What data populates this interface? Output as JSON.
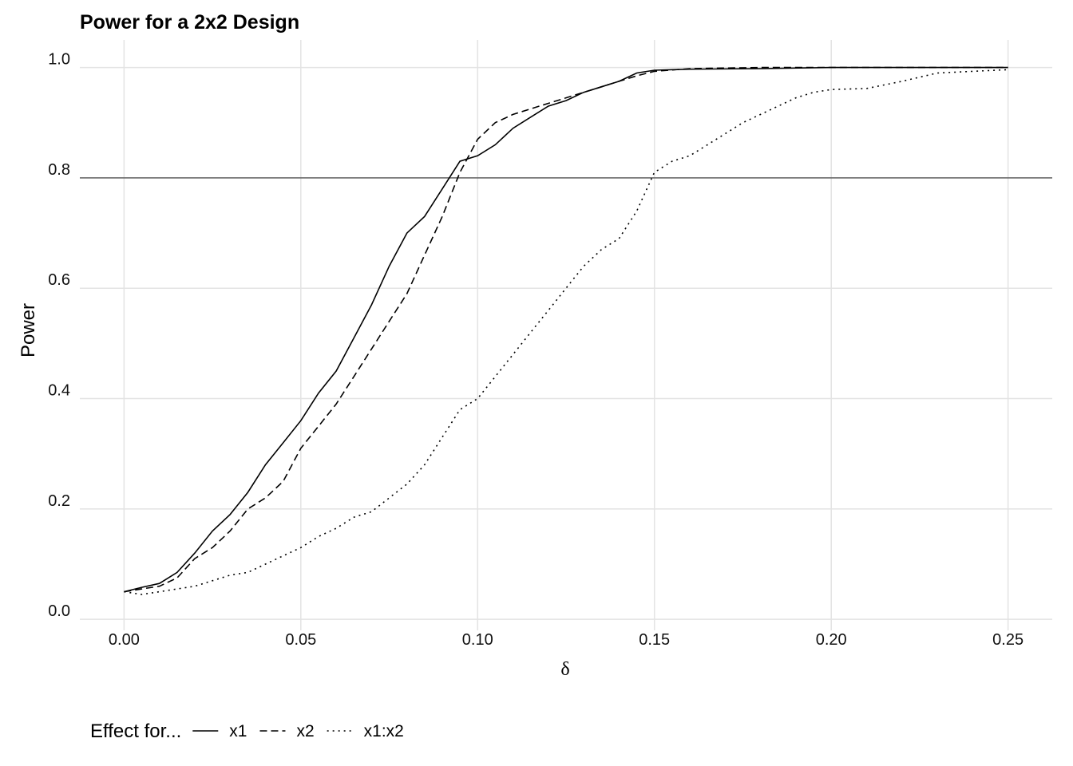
{
  "chart_data": {
    "type": "line",
    "title": "Power for a 2x2 Design",
    "xlabel": "δ",
    "ylabel": "Power",
    "xlim": [
      -0.0125,
      0.2625
    ],
    "ylim": [
      -0.02,
      1.05
    ],
    "x_ticks": [
      "0.00",
      "0.05",
      "0.10",
      "0.15",
      "0.20",
      "0.25"
    ],
    "y_ticks": [
      "0.0",
      "0.2",
      "0.4",
      "0.6",
      "0.8",
      "1.0"
    ],
    "reference_line_y": 0.8,
    "grid": true,
    "legend": {
      "title": "Effect for...",
      "position": "bottom-left"
    },
    "series": [
      {
        "name": "x1",
        "linetype": "solid",
        "points": [
          [
            0.0,
            0.05
          ],
          [
            0.005,
            0.058
          ],
          [
            0.01,
            0.065
          ],
          [
            0.015,
            0.085
          ],
          [
            0.02,
            0.12
          ],
          [
            0.025,
            0.16
          ],
          [
            0.03,
            0.19
          ],
          [
            0.035,
            0.23
          ],
          [
            0.04,
            0.28
          ],
          [
            0.045,
            0.32
          ],
          [
            0.05,
            0.36
          ],
          [
            0.055,
            0.41
          ],
          [
            0.06,
            0.45
          ],
          [
            0.065,
            0.51
          ],
          [
            0.07,
            0.57
          ],
          [
            0.075,
            0.64
          ],
          [
            0.08,
            0.7
          ],
          [
            0.085,
            0.73
          ],
          [
            0.09,
            0.78
          ],
          [
            0.095,
            0.83
          ],
          [
            0.1,
            0.84
          ],
          [
            0.105,
            0.86
          ],
          [
            0.11,
            0.89
          ],
          [
            0.115,
            0.91
          ],
          [
            0.12,
            0.93
          ],
          [
            0.125,
            0.94
          ],
          [
            0.13,
            0.955
          ],
          [
            0.135,
            0.965
          ],
          [
            0.14,
            0.975
          ],
          [
            0.145,
            0.99
          ],
          [
            0.15,
            0.995
          ],
          [
            0.16,
            0.997
          ],
          [
            0.18,
            0.998
          ],
          [
            0.2,
            1.0
          ],
          [
            0.25,
            1.0
          ]
        ]
      },
      {
        "name": "x2",
        "linetype": "dashed",
        "points": [
          [
            0.0,
            0.05
          ],
          [
            0.005,
            0.055
          ],
          [
            0.01,
            0.06
          ],
          [
            0.015,
            0.075
          ],
          [
            0.02,
            0.11
          ],
          [
            0.025,
            0.13
          ],
          [
            0.03,
            0.16
          ],
          [
            0.035,
            0.2
          ],
          [
            0.04,
            0.22
          ],
          [
            0.045,
            0.25
          ],
          [
            0.05,
            0.31
          ],
          [
            0.055,
            0.35
          ],
          [
            0.06,
            0.39
          ],
          [
            0.065,
            0.44
          ],
          [
            0.07,
            0.49
          ],
          [
            0.075,
            0.54
          ],
          [
            0.08,
            0.59
          ],
          [
            0.085,
            0.66
          ],
          [
            0.09,
            0.73
          ],
          [
            0.095,
            0.81
          ],
          [
            0.1,
            0.87
          ],
          [
            0.105,
            0.9
          ],
          [
            0.11,
            0.915
          ],
          [
            0.115,
            0.925
          ],
          [
            0.12,
            0.935
          ],
          [
            0.125,
            0.945
          ],
          [
            0.13,
            0.955
          ],
          [
            0.135,
            0.965
          ],
          [
            0.14,
            0.975
          ],
          [
            0.145,
            0.985
          ],
          [
            0.15,
            0.993
          ],
          [
            0.16,
            0.998
          ],
          [
            0.18,
            1.0
          ],
          [
            0.25,
            1.0
          ]
        ]
      },
      {
        "name": "x1:x2",
        "linetype": "dotted",
        "points": [
          [
            0.0,
            0.05
          ],
          [
            0.005,
            0.045
          ],
          [
            0.01,
            0.05
          ],
          [
            0.015,
            0.055
          ],
          [
            0.02,
            0.06
          ],
          [
            0.025,
            0.07
          ],
          [
            0.03,
            0.08
          ],
          [
            0.035,
            0.085
          ],
          [
            0.04,
            0.1
          ],
          [
            0.045,
            0.115
          ],
          [
            0.05,
            0.13
          ],
          [
            0.055,
            0.15
          ],
          [
            0.06,
            0.165
          ],
          [
            0.065,
            0.185
          ],
          [
            0.07,
            0.195
          ],
          [
            0.075,
            0.22
          ],
          [
            0.08,
            0.245
          ],
          [
            0.085,
            0.28
          ],
          [
            0.09,
            0.33
          ],
          [
            0.095,
            0.38
          ],
          [
            0.1,
            0.4
          ],
          [
            0.105,
            0.44
          ],
          [
            0.11,
            0.48
          ],
          [
            0.115,
            0.52
          ],
          [
            0.12,
            0.56
          ],
          [
            0.125,
            0.6
          ],
          [
            0.13,
            0.64
          ],
          [
            0.135,
            0.67
          ],
          [
            0.14,
            0.69
          ],
          [
            0.145,
            0.74
          ],
          [
            0.15,
            0.81
          ],
          [
            0.155,
            0.83
          ],
          [
            0.16,
            0.84
          ],
          [
            0.165,
            0.86
          ],
          [
            0.17,
            0.88
          ],
          [
            0.175,
            0.9
          ],
          [
            0.18,
            0.915
          ],
          [
            0.185,
            0.93
          ],
          [
            0.19,
            0.945
          ],
          [
            0.195,
            0.955
          ],
          [
            0.2,
            0.96
          ],
          [
            0.21,
            0.962
          ],
          [
            0.22,
            0.975
          ],
          [
            0.23,
            0.99
          ],
          [
            0.24,
            0.993
          ],
          [
            0.25,
            0.996
          ]
        ]
      }
    ]
  }
}
